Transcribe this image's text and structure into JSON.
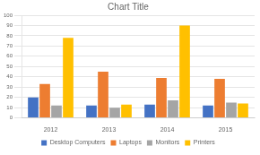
{
  "chart_data": {
    "type": "bar",
    "title": "Chart Title",
    "categories": [
      "2012",
      "2013",
      "2014",
      "2015"
    ],
    "series": [
      {
        "name": "Desktop Computers",
        "color": "#4472C4",
        "values": [
          20,
          12,
          13,
          12
        ]
      },
      {
        "name": "Laptops",
        "color": "#ED7D31",
        "values": [
          33,
          45,
          39,
          38
        ]
      },
      {
        "name": "Monitors",
        "color": "#A5A5A5",
        "values": [
          12,
          10,
          17,
          15
        ]
      },
      {
        "name": "Printers",
        "color": "#FFC000",
        "values": [
          78,
          13,
          90,
          14
        ]
      }
    ],
    "ylim": [
      0,
      100
    ],
    "yticks": [
      0,
      10,
      20,
      30,
      40,
      50,
      60,
      70,
      80,
      90,
      100
    ],
    "grid": true,
    "legend": "bottom"
  }
}
